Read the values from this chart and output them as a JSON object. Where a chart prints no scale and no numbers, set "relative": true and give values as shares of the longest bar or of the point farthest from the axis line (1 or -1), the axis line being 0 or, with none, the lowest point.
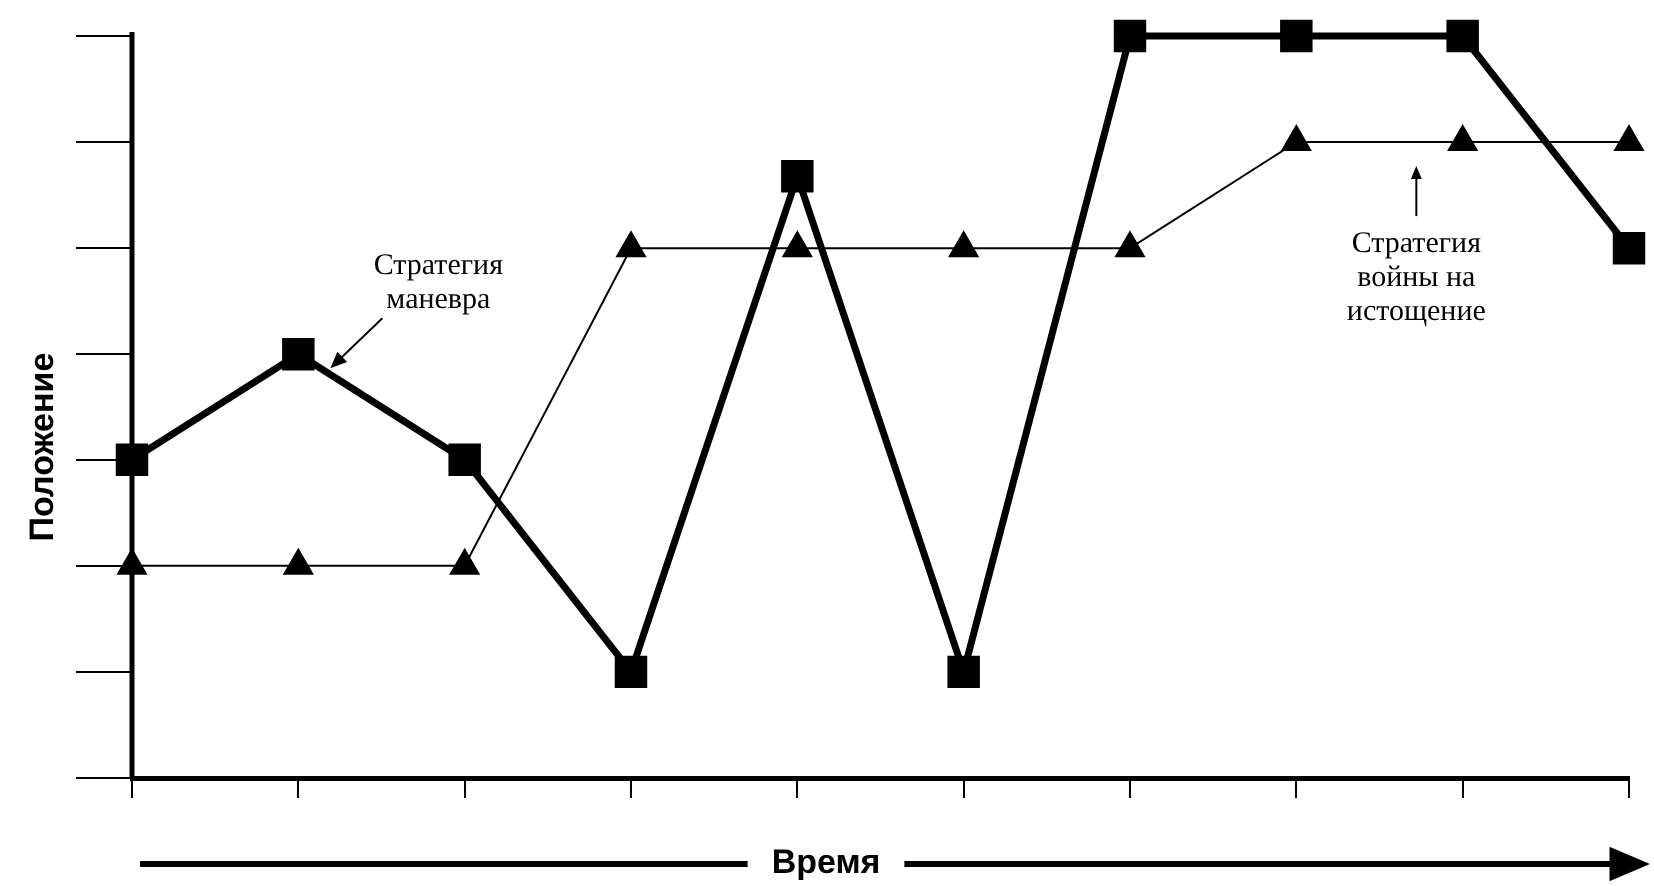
{
  "chart_data": {
    "type": "line",
    "relative": true,
    "xlabel": "Время",
    "ylabel": "Положение",
    "categories": [
      null,
      null,
      null,
      null,
      null,
      null,
      null,
      null,
      null,
      null
    ],
    "grid": false,
    "legend": false,
    "annotations": [
      "Стратегия маневра",
      "Стратегия войны на истощение"
    ],
    "series": [
      {
        "color": "#000000",
        "marker": "square",
        "values": [
          0.429,
          0.571,
          0.429,
          0.143,
          0.811,
          0.143,
          1,
          1,
          1,
          0.714
        ]
      },
      {
        "color": "#000000",
        "marker": "triangle",
        "values": [
          0.286,
          0.286,
          0.286,
          0.714,
          0.714,
          0.714,
          0.714,
          0.857,
          0.857,
          0.857
        ]
      }
    ]
  }
}
